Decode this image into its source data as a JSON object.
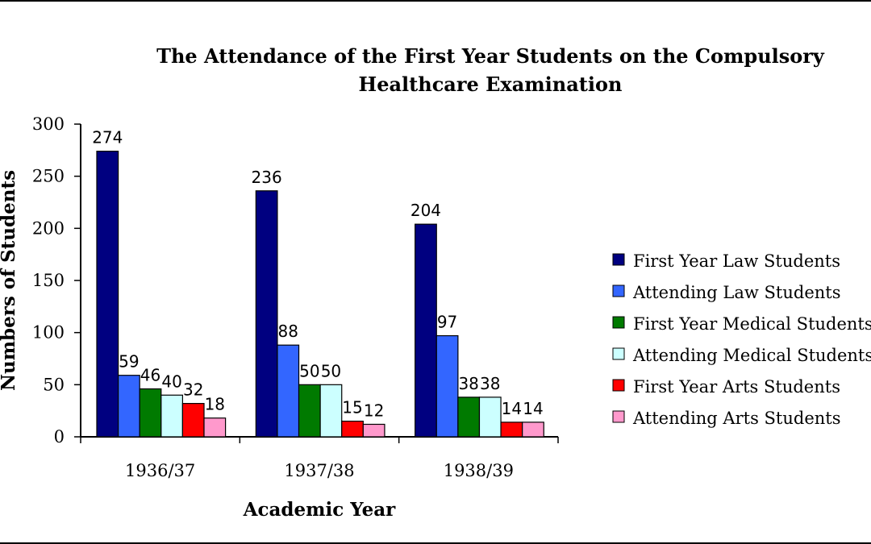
{
  "chart_data": {
    "type": "bar",
    "title_lines": [
      "The Attendance of the First Year Students on the Compulsory",
      "Healthcare Examination"
    ],
    "xlabel": "Academic Year",
    "ylabel": "Numbers of Students",
    "ylim": [
      0,
      300
    ],
    "yticks": [
      "0",
      "50",
      "100",
      "150",
      "200",
      "250",
      "300"
    ],
    "categories": [
      "1936/37",
      "1937/38",
      "1938/39"
    ],
    "legend_position": "right",
    "grid": false,
    "series": [
      {
        "name": "First Year Law Students",
        "color": "#000080",
        "values": [
          274,
          236,
          204
        ]
      },
      {
        "name": "Attending Law Students",
        "color": "#3366ff",
        "values": [
          59,
          88,
          97
        ]
      },
      {
        "name": "First Year Medical Students",
        "color": "#007a00",
        "values": [
          46,
          50,
          38
        ]
      },
      {
        "name": "Attending Medical Students",
        "color": "#ccffff",
        "values": [
          40,
          50,
          38
        ]
      },
      {
        "name": "First Year Arts Students",
        "color": "#ff0000",
        "values": [
          32,
          15,
          14
        ]
      },
      {
        "name": "Attending Arts Students",
        "color": "#ff99cc",
        "values": [
          18,
          12,
          14
        ]
      }
    ]
  }
}
